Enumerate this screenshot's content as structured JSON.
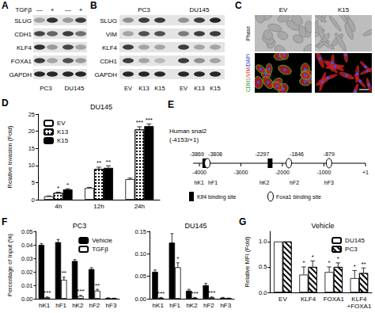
{
  "panels": [
    {
      "panel": "A",
      "type": "western_blot",
      "treatment": "TGFβ",
      "lanes": [
        "—",
        "+",
        "—",
        "+"
      ],
      "groups": [
        "PC3",
        "DU145"
      ],
      "rows": [
        {
          "name": "SLUG",
          "bands": [
            0.3,
            0.85,
            0.35,
            0.8
          ]
        },
        {
          "name": "CDH1",
          "bands": [
            0.75,
            0.6,
            0.8,
            0.55
          ]
        },
        {
          "name": "KLF4",
          "bands": [
            0.85,
            0.35,
            0.75,
            0.3
          ]
        },
        {
          "name": "FOXA1",
          "bands": [
            0.8,
            0.3,
            0.7,
            0.35
          ]
        },
        {
          "name": "GAPDH",
          "bands": [
            0.9,
            0.9,
            0.9,
            0.9
          ]
        }
      ]
    },
    {
      "panel": "B",
      "type": "western_blot",
      "groups": [
        "PC3",
        "DU145"
      ],
      "lanes": [
        "EV",
        "K13",
        "K15",
        "EV",
        "K13",
        "K15"
      ],
      "rows": [
        {
          "name": "SLUG",
          "bands": [
            0.4,
            0.8,
            0.8,
            0.4,
            0.8,
            0.9
          ]
        },
        {
          "name": "VIM",
          "bands": [
            0.3,
            0.7,
            0.7,
            0.5,
            0.8,
            0.8
          ]
        },
        {
          "name": "KLF4",
          "bands": [
            0.8,
            0.3,
            0.3,
            0.8,
            0.3,
            0.3
          ]
        },
        {
          "name": "CDH1",
          "bands": [
            0.8,
            0.3,
            0.2,
            0.8,
            0.4,
            0.3
          ]
        },
        {
          "name": "GAPDH",
          "bands": [
            0.9,
            0.9,
            0.9,
            0.9,
            0.9,
            0.9
          ]
        }
      ]
    },
    {
      "panel": "C",
      "type": "micrograph",
      "columns": [
        "EV",
        "K15"
      ],
      "rows": [
        {
          "label": [
            {
              "text": "Phase",
              "color": "#000000"
            }
          ]
        },
        {
          "label": [
            {
              "text": "CDH1",
              "color": "#2ca02c"
            },
            {
              "text": "/VIM",
              "color": "#d62728"
            },
            {
              "text": "/DAPI",
              "color": "#1f3fbf"
            }
          ]
        }
      ]
    },
    {
      "panel": "E",
      "type": "diagram",
      "title": "Human snai2\n(-4153/+1)",
      "xlim": [
        -4153,
        1
      ],
      "xticks": [
        -4000,
        -3000,
        -2000,
        -1000,
        {
          "value": 1,
          "label": "+1"
        }
      ],
      "sites": [
        {
          "name": "hK1",
          "kind": "Klf4",
          "position": -3869
        },
        {
          "name": "hF1",
          "kind": "Foxa1",
          "position": -3808
        },
        {
          "name": "hK2",
          "kind": "Klf4",
          "position": -2297
        },
        {
          "name": "hF2",
          "kind": "Foxa1",
          "position": -1846
        },
        {
          "name": "hF3",
          "kind": "Foxa1",
          "position": -879
        }
      ],
      "legend": [
        {
          "kind": "Klf4",
          "marker": "rect",
          "label": "Klf4 binding site"
        },
        {
          "kind": "Foxa1",
          "marker": "ellipse",
          "label": "Foxa1 binding site"
        }
      ]
    }
  ],
  "chart_data": [
    {
      "type": "bar",
      "panel": "D",
      "title": "DU145",
      "ylabel": "Relative Invasion (Fold)",
      "categories": [
        "4h",
        "12h",
        "24h"
      ],
      "ylim": [
        0,
        25
      ],
      "yticks": [
        0,
        5,
        10,
        15,
        20,
        25
      ],
      "grid": false,
      "legend": "top-left",
      "series": [
        {
          "name": "EV",
          "color": "#ffffff",
          "values": [
            1,
            3.4,
            6
          ],
          "errors": [
            0.1,
            0.2,
            0.3
          ],
          "annotations": [
            null,
            null,
            null
          ]
        },
        {
          "name": "K13",
          "color": "#ffffff",
          "values": [
            2,
            9,
            20.5
          ],
          "errors": [
            0.2,
            0.5,
            0.8
          ],
          "annotations": [
            "*",
            "**",
            "***"
          ]
        },
        {
          "name": "K15",
          "color": "#000000",
          "values": [
            3,
            9.3,
            21.5
          ],
          "errors": [
            0.2,
            0.6,
            0.6
          ],
          "annotations": [
            "*",
            "**",
            "***"
          ]
        }
      ]
    },
    {
      "type": "bar",
      "panel": "F",
      "title": "PC3",
      "ylabel": "Percentage of Input (%)",
      "categories": [
        "hK1",
        "hF1",
        "hK2",
        "hF2",
        "hF3"
      ],
      "ylim": [
        0,
        0.05
      ],
      "yticks": [
        {
          "value": 0,
          "label": "0.00"
        },
        {
          "value": 0.01,
          "label": "0.01"
        },
        {
          "value": 0.02,
          "label": "0.02"
        },
        {
          "value": 0.03,
          "label": "0.03"
        },
        {
          "value": 0.04,
          "label": "0.04"
        },
        {
          "value": 0.05,
          "label": "0.05"
        }
      ],
      "grid": false,
      "legend": "top-right",
      "series": [
        {
          "name": "Vehicle",
          "color": "#000000",
          "values": [
            0.04,
            0.042,
            0.028,
            0.022,
            0.0005
          ],
          "errors": [
            0.001,
            0.002,
            0.001,
            0.001,
            0.0002
          ],
          "annotations": [
            null,
            null,
            null,
            null,
            null
          ]
        },
        {
          "name": "TGFβ",
          "color": "#ffffff",
          "values": [
            0.001,
            0.014,
            0.002,
            0.006,
            0.0003
          ],
          "errors": [
            0.0003,
            0.002,
            0.0005,
            0.001,
            0.0001
          ],
          "annotations": [
            "***",
            "**",
            "***",
            "**",
            null
          ]
        }
      ]
    },
    {
      "type": "bar",
      "title": "DU145",
      "categories": [
        "hK1",
        "hF1",
        "hK2",
        "hF2",
        "hF3"
      ],
      "ylim": [
        0,
        0.15
      ],
      "yticks": [
        {
          "value": 0,
          "label": "0.00"
        },
        {
          "value": 0.05,
          "label": "0.05"
        },
        {
          "value": 0.1,
          "label": "0.10"
        },
        {
          "value": 0.15,
          "label": "0.15"
        }
      ],
      "grid": false,
      "series": [
        {
          "name": "Vehicle",
          "color": "#000000",
          "values": [
            0.06,
            0.125,
            0.018,
            0.03,
            0.002
          ],
          "errors": [
            0.004,
            0.02,
            0.003,
            0.004,
            0.001
          ],
          "annotations": [
            null,
            null,
            null,
            null,
            null
          ]
        },
        {
          "name": "TGFβ",
          "color": "#ffffff",
          "values": [
            0.002,
            0.07,
            0.002,
            0.003,
            0.001
          ],
          "errors": [
            0.001,
            0.01,
            0.001,
            0.001,
            0.0005
          ],
          "annotations": [
            "***",
            "*",
            "***",
            "***",
            null
          ]
        }
      ]
    },
    {
      "type": "bar",
      "panel": "G",
      "title": "Vehicle",
      "ylabel": "Relative MFI (Fold)",
      "categories": [
        "EV",
        "KLF4",
        "FOXA1",
        "KLF4\n+FOXA1"
      ],
      "ylim": [
        0,
        1.2
      ],
      "yticks": [
        {
          "value": 0,
          "label": "0.0"
        },
        {
          "value": 0.5,
          "label": "0.5"
        },
        {
          "value": 1,
          "label": "1.0"
        }
      ],
      "grid": false,
      "legend": "top-right",
      "series": [
        {
          "name": "DU145",
          "color": "#ffffff",
          "values": [
            1,
            0.35,
            0.4,
            0.28
          ],
          "errors": [
            0,
            0.15,
            0.1,
            0.15
          ],
          "annotations": [
            null,
            "*",
            "*",
            "*"
          ]
        },
        {
          "name": "PC3",
          "color": "#ffffff",
          "values": [
            1,
            0.5,
            0.5,
            0.38
          ],
          "errors": [
            0,
            0.12,
            0.08,
            0.1
          ],
          "annotations": [
            null,
            "*",
            "*",
            "**"
          ]
        }
      ]
    }
  ]
}
